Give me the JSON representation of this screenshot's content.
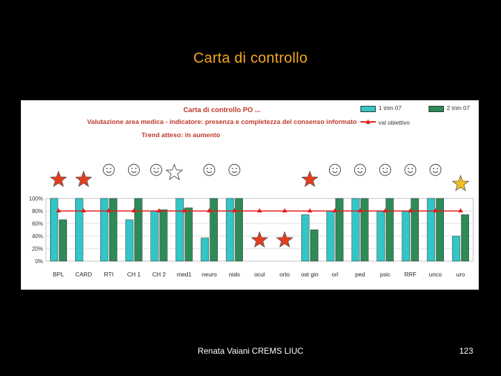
{
  "slide": {
    "title": "Carta di controllo",
    "footer_author": "Renata Vaiani CREMS LIUC",
    "page_number": "123"
  },
  "colors": {
    "series1": "#33C6C6",
    "series2": "#2E8B57",
    "target_line": "#E31A1C",
    "title_text": "#F5A623",
    "chart_header_text": "#C0392B",
    "star_red": "#E53E1E",
    "star_yellow": "#F2C01E"
  },
  "chart_data": {
    "type": "bar",
    "title": "Carta di controllo PO ...",
    "subtitle": "Valutazione area medica - indicatore: presenza e completezza del consenso informato",
    "trend_text": "Trend atteso: in aumento",
    "categories": [
      "BPL",
      "CARD",
      "RTI",
      "CH 1",
      "CH 2",
      "med1",
      "neuro",
      "nido",
      "ocul",
      "orto",
      "ost gin",
      "orl",
      "ped",
      "psic",
      "RRF",
      "unco",
      "uro"
    ],
    "series": [
      {
        "name": "1 trim 07",
        "color": "#33C6C6",
        "values": [
          100,
          100,
          100,
          66,
          80,
          100,
          37,
          100,
          0,
          0,
          74,
          80,
          100,
          80,
          80,
          100,
          40
        ]
      },
      {
        "name": "2 trim 07",
        "color": "#2E8B57",
        "values": [
          66,
          0,
          100,
          100,
          82,
          85,
          100,
          100,
          0,
          0,
          50,
          100,
          100,
          100,
          100,
          100,
          74
        ]
      }
    ],
    "target": {
      "name": "val obiettivo",
      "value": 80
    },
    "ylim": [
      0,
      100
    ],
    "yticks": [
      0,
      20,
      40,
      60,
      80,
      100
    ],
    "ytick_labels": [
      "0%",
      "20%",
      "40%",
      "60%",
      "80%",
      "100%"
    ],
    "annotations": {
      "markers_above": [
        "star-red",
        "star-red",
        "smiley",
        "smiley",
        "smiley-star-outline",
        "none",
        "smiley",
        "smiley",
        "none",
        "none",
        "star-red",
        "smiley",
        "smiley",
        "smiley",
        "smiley",
        "smiley",
        "star-yellow"
      ],
      "markers_low": [
        "none",
        "none",
        "none",
        "none",
        "none",
        "none",
        "none",
        "none",
        "star-red",
        "star-red",
        "none",
        "none",
        "none",
        "none",
        "none",
        "none",
        "none"
      ]
    }
  }
}
